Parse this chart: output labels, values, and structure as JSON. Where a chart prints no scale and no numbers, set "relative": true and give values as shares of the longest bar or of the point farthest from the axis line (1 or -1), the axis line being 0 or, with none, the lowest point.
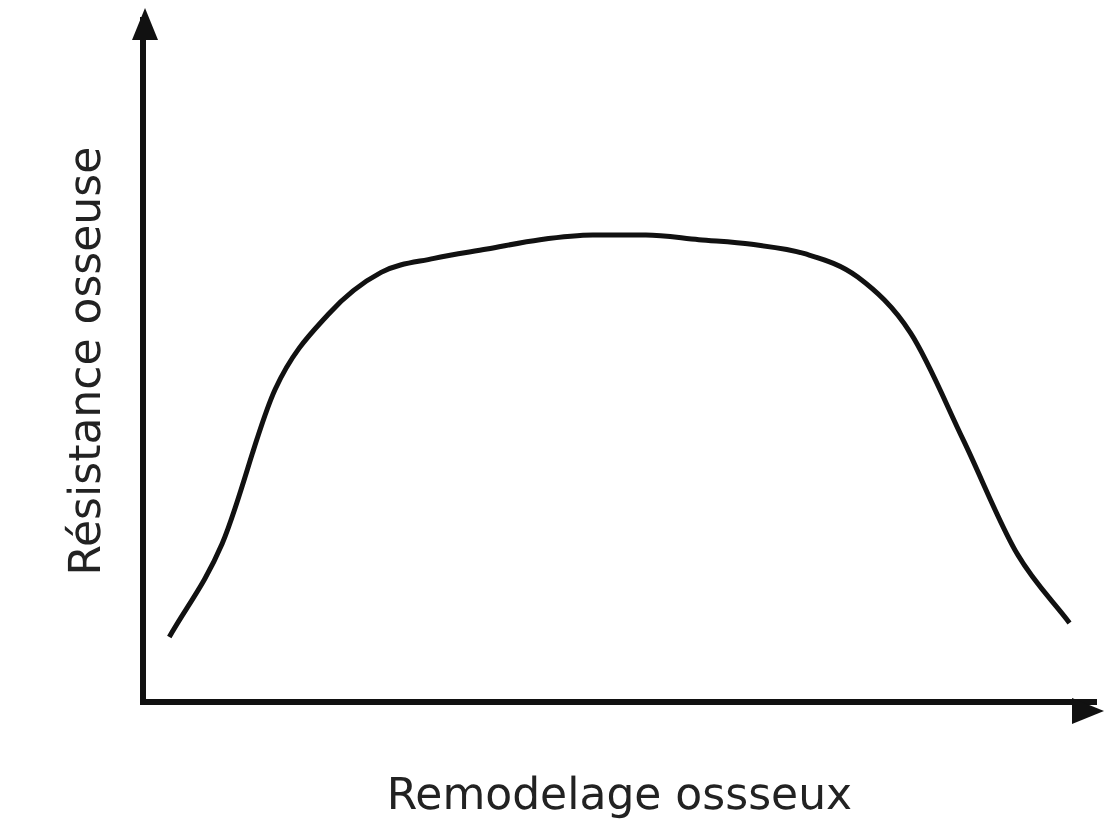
{
  "chart_data": {
    "type": "line",
    "relative": true,
    "xlabel": "Remodelage ossseux",
    "ylabel": "Résistance osseuse",
    "grid": false,
    "legend": false,
    "marker": "none",
    "line_style": "solid",
    "categories": [
      null,
      null,
      null,
      null,
      null,
      null,
      null,
      null,
      null,
      null,
      null,
      null,
      null,
      null,
      null,
      null,
      null,
      null
    ],
    "series": [
      {
        "color": "#111111",
        "values": [
          0.14,
          0.34,
          0.67,
          0.83,
          0.92,
          0.95,
          0.97,
          0.99,
          1.0,
          1.0,
          0.99,
          0.98,
          0.96,
          0.91,
          0.79,
          0.56,
          0.32,
          0.17
        ]
      }
    ]
  }
}
